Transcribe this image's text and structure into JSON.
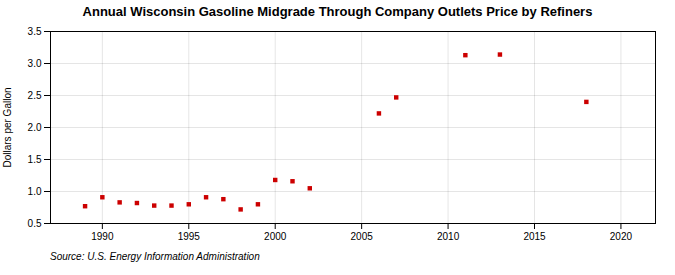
{
  "chart_data": {
    "type": "scatter",
    "title": "Annual Wisconsin Gasoline Midgrade Through Company Outlets Price by Refiners",
    "ylabel": "Dollars per Gallon",
    "source": "Source: U.S. Energy Information Administration",
    "x": [
      1989,
      1990,
      1991,
      1992,
      1993,
      1994,
      1995,
      1996,
      1997,
      1998,
      1999,
      2000,
      2001,
      2002,
      2006,
      2007,
      2011,
      2013,
      2018
    ],
    "values": [
      0.77,
      0.91,
      0.83,
      0.82,
      0.78,
      0.78,
      0.8,
      0.91,
      0.88,
      0.72,
      0.8,
      1.18,
      1.16,
      1.05,
      2.22,
      2.47,
      3.13,
      3.14,
      2.4
    ],
    "color": "#cc0000",
    "marker": "square",
    "xlim": [
      1987,
      2022
    ],
    "ylim": [
      0.5,
      3.5
    ],
    "xticks": [
      1990,
      1995,
      2000,
      2005,
      2010,
      2015,
      2020
    ],
    "yticks": [
      0.5,
      {
        "value": 1.0,
        "label": "1.0"
      },
      1.5,
      {
        "value": 2.0,
        "label": "2.0"
      },
      2.5,
      {
        "value": 3.0,
        "label": "3.0"
      },
      3.5
    ],
    "grid": true
  }
}
